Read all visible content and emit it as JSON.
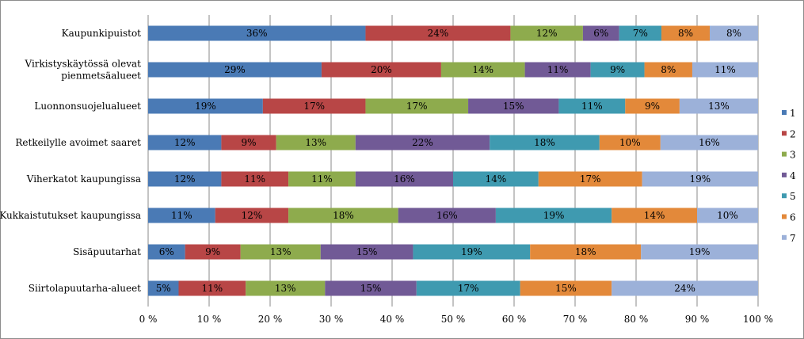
{
  "chart_data": {
    "type": "bar",
    "orientation": "horizontal",
    "stacked": "percent",
    "title": "",
    "xlabel": "",
    "ylabel": "",
    "xlim": [
      0,
      100
    ],
    "x_ticks": [
      "0 %",
      "10 %",
      "20 %",
      "30 %",
      "40 %",
      "50 %",
      "60 %",
      "70 %",
      "80 %",
      "90 %",
      "100 %"
    ],
    "grid": "vertical",
    "legend_position": "right",
    "categories": [
      [
        "Kaupunkipuistot"
      ],
      [
        "Virkistyskäytössä olevat",
        "pienmetsäalueet"
      ],
      [
        "Luonnonsuojelualueet"
      ],
      [
        "Retkeilylle avoimet saaret"
      ],
      [
        "Viherkatot kaupungissa"
      ],
      [
        "Kukkaistutukset kaupungissa"
      ],
      [
        "Sisäpuutarhat"
      ],
      [
        "Siirtolapuutarha-alueet"
      ]
    ],
    "series": [
      {
        "name": "1",
        "color": "#4a7ab5",
        "values": [
          36,
          29,
          19,
          12,
          12,
          11,
          6,
          5
        ],
        "labels": [
          "36%",
          "29%",
          "19%",
          "12%",
          "12%",
          "11%",
          "6%",
          "5%"
        ]
      },
      {
        "name": "2",
        "color": "#b84646",
        "values": [
          24,
          20,
          17,
          9,
          11,
          12,
          9,
          11
        ],
        "labels": [
          "24%",
          "20%",
          "17%",
          "9%",
          "11%",
          "12%",
          "9%",
          "11%"
        ]
      },
      {
        "name": "3",
        "color": "#8eab4d",
        "values": [
          12,
          14,
          17,
          13,
          11,
          18,
          13,
          13
        ],
        "labels": [
          "12%",
          "14%",
          "17%",
          "13%",
          "11%",
          "18%",
          "13%",
          "13%"
        ]
      },
      {
        "name": "4",
        "color": "#715a96",
        "values": [
          6,
          11,
          15,
          22,
          16,
          16,
          15,
          15
        ],
        "labels": [
          "6%",
          "11%",
          "15%",
          "22%",
          "16%",
          "16%",
          "15%",
          "15%"
        ]
      },
      {
        "name": "5",
        "color": "#3f9ab0",
        "values": [
          7,
          9,
          11,
          18,
          14,
          19,
          19,
          17
        ],
        "labels": [
          "7%",
          "9%",
          "11%",
          "18%",
          "14%",
          "19%",
          "19%",
          "17%"
        ]
      },
      {
        "name": "6",
        "color": "#e3893a",
        "values": [
          8,
          8,
          9,
          10,
          17,
          14,
          18,
          15
        ],
        "labels": [
          "8%",
          "8%",
          "9%",
          "10%",
          "17%",
          "14%",
          "18%",
          "15%"
        ]
      },
      {
        "name": "7",
        "color": "#9cb1d9",
        "values": [
          8,
          11,
          13,
          16,
          19,
          10,
          19,
          24
        ],
        "labels": [
          "8%",
          "11%",
          "13%",
          "16%",
          "19%",
          "10%",
          "19%",
          "24%"
        ]
      }
    ]
  }
}
